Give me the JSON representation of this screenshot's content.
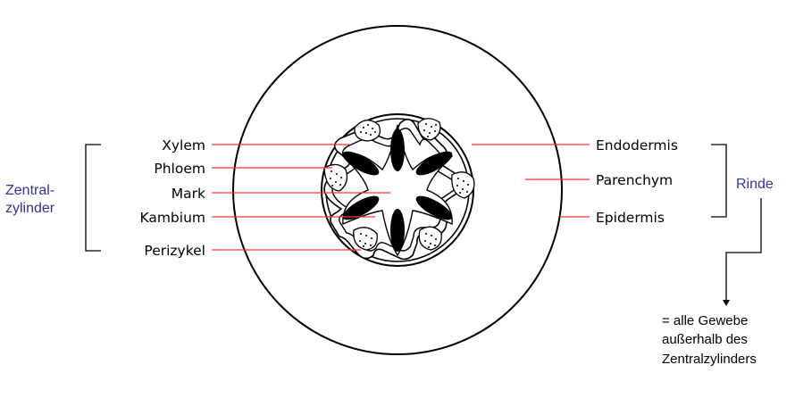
{
  "labels_left": {
    "xylem": "Xylem",
    "phloem": "Phloem",
    "mark": "Mark",
    "kambium": "Kambium",
    "perizykel": "Perizykel"
  },
  "labels_right": {
    "endodermis": "Endodermis",
    "parenchym": "Parenchym",
    "epidermis": "Epidermis"
  },
  "groups": {
    "zentralzylinder_line1": "Zentral-",
    "zentralzylinder_line2": "zylinder",
    "rinde": "Rinde"
  },
  "note": {
    "line1": "= alle Gewebe",
    "line2": "außerhalb des",
    "line3": "Zentralzylinders"
  },
  "colors": {
    "leader": "#ff3333",
    "group_label": "#33339a",
    "outline": "#000000"
  }
}
